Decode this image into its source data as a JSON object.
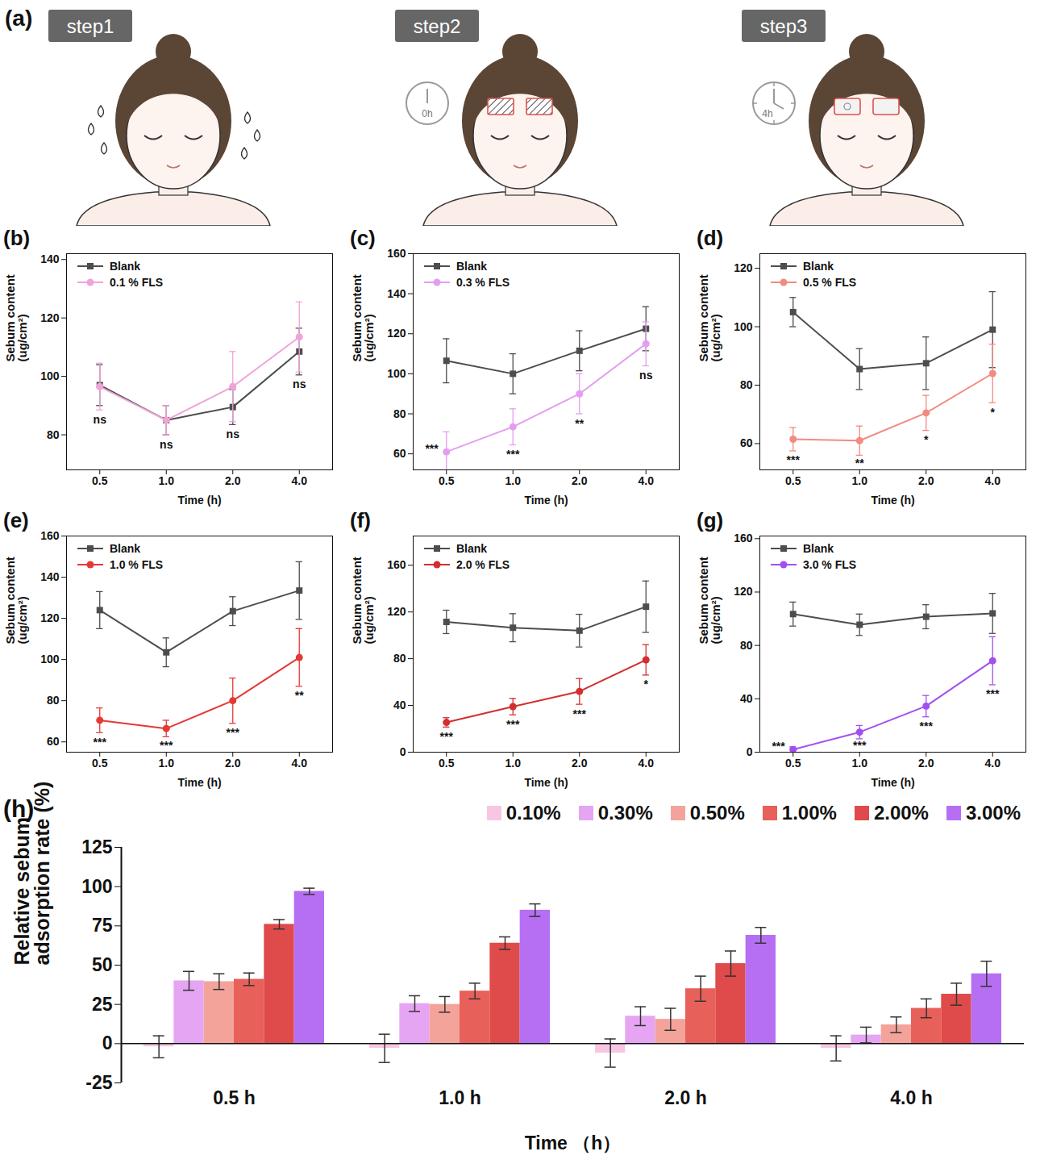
{
  "diagram": {
    "panel": "(a)",
    "steps": [
      {
        "label": "step1"
      },
      {
        "label": "step2",
        "time": "0h"
      },
      {
        "label": "step3",
        "time": "4h"
      }
    ]
  },
  "chart_data": [
    {
      "type": "line",
      "panel": "(b)",
      "x_label": "Time (h)",
      "y_label": "Sebum content (ug/cm²)",
      "categories": [
        "0.5",
        "1.0",
        "2.0",
        "4.0"
      ],
      "ylim": [
        68,
        142
      ],
      "yticks": [
        80,
        100,
        120,
        140
      ],
      "grid": false,
      "legend": "top-left",
      "series": [
        {
          "name": "Blank",
          "color": "#4d4d4d",
          "marker": "square",
          "values": [
            97,
            85,
            89.5,
            108.5
          ],
          "errors": [
            7,
            5,
            6,
            8
          ]
        },
        {
          "name": "0.1 % FLS",
          "color": "#f0a3d9",
          "marker": "circle",
          "values": [
            96.5,
            85,
            96.5,
            113.5
          ],
          "errors": [
            8,
            5,
            12,
            12
          ]
        }
      ],
      "annotations": [
        "ns",
        "ns",
        "ns",
        "ns"
      ]
    },
    {
      "type": "line",
      "panel": "(c)",
      "x_label": "Time (h)",
      "y_label": "Sebum content (ug/cm²)",
      "categories": [
        "0.5",
        "1.0",
        "2.0",
        "4.0"
      ],
      "ylim": [
        52,
        160
      ],
      "yticks": [
        60,
        80,
        100,
        120,
        140,
        160
      ],
      "grid": false,
      "legend": "top-left",
      "series": [
        {
          "name": "Blank",
          "color": "#4d4d4d",
          "marker": "square",
          "values": [
            106.5,
            100,
            111.5,
            122.5
          ],
          "errors": [
            11,
            10,
            10,
            11
          ]
        },
        {
          "name": "0.3 % FLS",
          "color": "#e39ef0",
          "marker": "circle",
          "values": [
            61,
            73.5,
            90,
            115
          ],
          "errors": [
            10,
            9,
            10,
            11
          ]
        }
      ],
      "annotations": [
        "***",
        "***",
        "**",
        "ns"
      ]
    },
    {
      "type": "line",
      "panel": "(d)",
      "x_label": "Time (h)",
      "y_label": "Sebum content (ug/cm²)",
      "categories": [
        "0.5",
        "1.0",
        "2.0",
        "4.0"
      ],
      "ylim": [
        51,
        125
      ],
      "yticks": [
        60,
        80,
        100,
        120
      ],
      "grid": false,
      "legend": "top-left",
      "series": [
        {
          "name": "Blank",
          "color": "#4d4d4d",
          "marker": "square",
          "values": [
            105,
            85.5,
            87.5,
            99
          ],
          "errors": [
            5,
            7,
            9,
            13
          ]
        },
        {
          "name": "0.5 % FLS",
          "color": "#f28b82",
          "marker": "circle",
          "values": [
            61.5,
            61,
            70.5,
            84
          ],
          "errors": [
            4,
            5,
            6,
            10
          ]
        }
      ],
      "annotations": [
        "***",
        "**",
        "*",
        "*"
      ]
    },
    {
      "type": "line",
      "panel": "(e)",
      "x_label": "Time (h)",
      "y_label": "Sebum content (ug/cm²)",
      "categories": [
        "0.5",
        "1.0",
        "2.0",
        "4.0"
      ],
      "ylim": [
        55,
        160
      ],
      "yticks": [
        60,
        80,
        100,
        120,
        140,
        160
      ],
      "grid": false,
      "legend": "top-left",
      "series": [
        {
          "name": "Blank",
          "color": "#4d4d4d",
          "marker": "square",
          "values": [
            124,
            103.5,
            123.5,
            133.5
          ],
          "errors": [
            9,
            7,
            7,
            14
          ]
        },
        {
          "name": "1.0 % FLS",
          "color": "#e53935",
          "marker": "circle",
          "values": [
            70.5,
            66.5,
            80,
            101
          ],
          "errors": [
            6,
            4,
            11,
            14
          ]
        }
      ],
      "annotations": [
        "***",
        "***",
        "***",
        "**"
      ]
    },
    {
      "type": "line",
      "panel": "(f)",
      "x_label": "Time (h)",
      "y_label": "Sebum content (ug/cm²)",
      "categories": [
        "0.5",
        "1.0",
        "2.0",
        "4.0"
      ],
      "ylim": [
        0,
        185
      ],
      "yticks": [
        0,
        40,
        80,
        120,
        160
      ],
      "grid": false,
      "legend": "top-left",
      "series": [
        {
          "name": "Blank",
          "color": "#4d4d4d",
          "marker": "square",
          "values": [
            111.5,
            106.5,
            104,
            124.5
          ],
          "errors": [
            10,
            12,
            14,
            22
          ]
        },
        {
          "name": "2.0 % FLS",
          "color": "#d32f2f",
          "marker": "circle",
          "values": [
            25.5,
            39,
            52,
            79
          ],
          "errors": [
            4,
            7,
            11,
            13
          ]
        }
      ],
      "annotations": [
        "***",
        "***",
        "***",
        "*"
      ]
    },
    {
      "type": "line",
      "panel": "(g)",
      "x_label": "Time (h)",
      "y_label": "Sebum content (ug/cm²)",
      "categories": [
        "0.5",
        "1.0",
        "2.0",
        "4.0"
      ],
      "ylim": [
        0,
        162
      ],
      "yticks": [
        0,
        40,
        80,
        120,
        160
      ],
      "grid": false,
      "legend": "top-left",
      "series": [
        {
          "name": "Blank",
          "color": "#4d4d4d",
          "marker": "square",
          "values": [
            103.5,
            95.5,
            101.5,
            104
          ],
          "errors": [
            9,
            8,
            9,
            15
          ]
        },
        {
          "name": "3.0 % FLS",
          "color": "#a24ff0",
          "marker": "circle",
          "values": [
            2,
            15,
            34.5,
            68.5
          ],
          "errors": [
            2,
            5,
            8,
            18
          ]
        }
      ],
      "annotations": [
        "***",
        "***",
        "***",
        "***"
      ]
    },
    {
      "type": "bar",
      "panel": "(h)",
      "x_label": "Time （h）",
      "y_label": "Relative sebum adsorption rate (%)",
      "categories": [
        "0.5 h",
        "1.0 h",
        "2.0 h",
        "4.0 h"
      ],
      "ylim": [
        -25,
        125
      ],
      "yticks": [
        -25,
        0,
        25,
        50,
        75,
        100,
        125
      ],
      "grid": false,
      "legend": "top-right",
      "series": [
        {
          "name": "0.10%",
          "color": "#f8c6e2",
          "values": [
            -2,
            -3,
            -6,
            -3
          ],
          "errors": [
            7,
            9,
            9,
            8
          ]
        },
        {
          "name": "0.30%",
          "color": "#e6a5f2",
          "values": [
            40,
            25.5,
            17.5,
            5.5
          ],
          "errors": [
            6,
            5,
            6,
            5
          ]
        },
        {
          "name": "0.50%",
          "color": "#f4a39b",
          "values": [
            39.5,
            25,
            15.5,
            12
          ],
          "errors": [
            5,
            5,
            7,
            5
          ]
        },
        {
          "name": "1.00%",
          "color": "#e8605a",
          "values": [
            41,
            33.5,
            35,
            22.5
          ],
          "errors": [
            4,
            5,
            8,
            6
          ]
        },
        {
          "name": "2.00%",
          "color": "#df4a4a",
          "values": [
            76,
            64,
            51,
            31.5
          ],
          "errors": [
            3,
            4,
            8,
            7
          ]
        },
        {
          "name": "3.00%",
          "color": "#b66ff2",
          "values": [
            97,
            85,
            69,
            44.5
          ],
          "errors": [
            2,
            4,
            5,
            8
          ]
        }
      ]
    }
  ]
}
